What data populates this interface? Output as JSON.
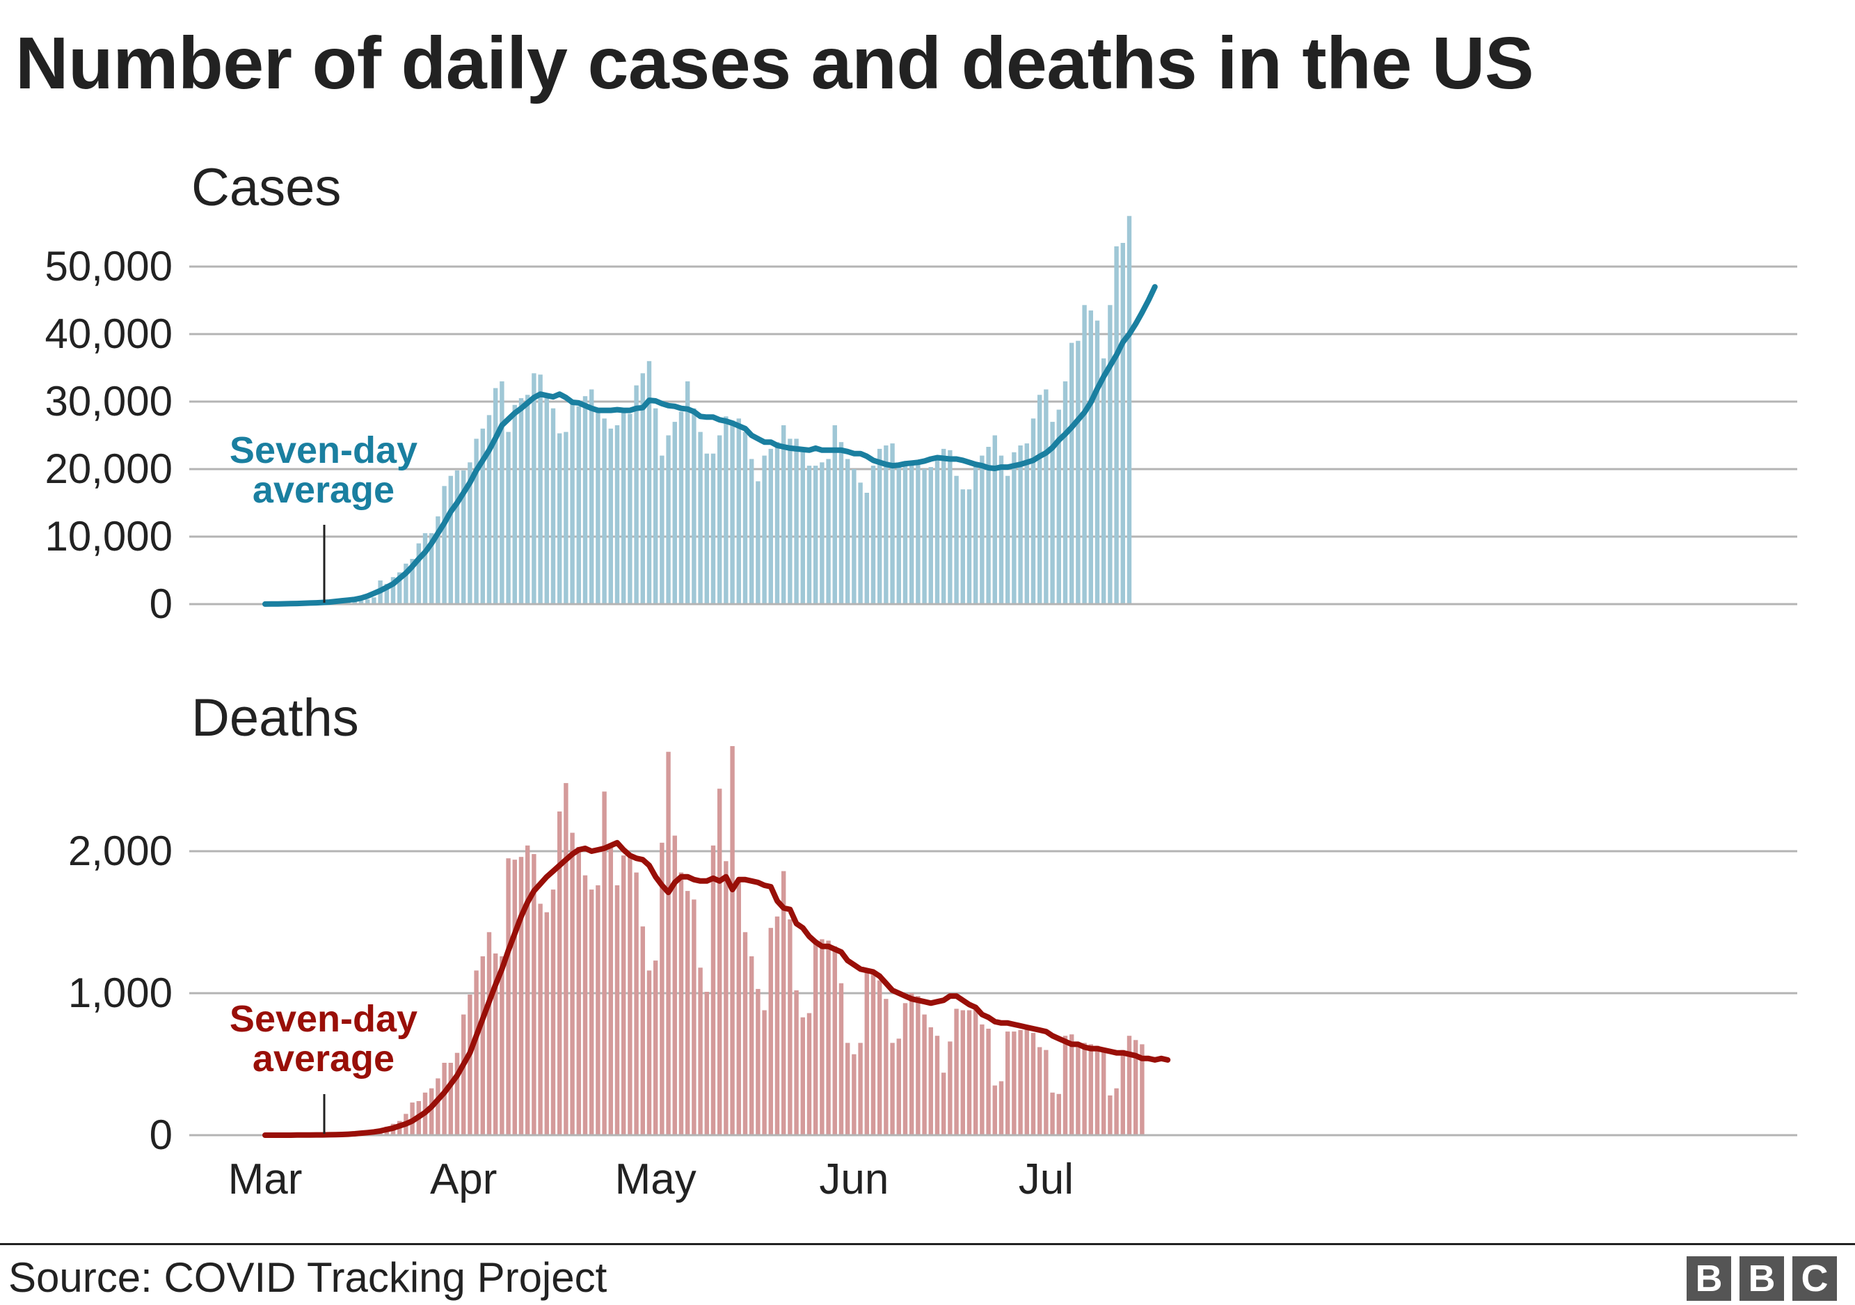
{
  "title": "Number of daily cases and deaths in the US",
  "source": "Source: COVID Tracking Project",
  "logo": [
    "B",
    "B",
    "C"
  ],
  "colors": {
    "cases_bar": "#9fc7d6",
    "cases_line": "#1a7fa0",
    "deaths_bar": "#d49a9a",
    "deaths_line": "#990f08",
    "grid": "#b4b4b4",
    "text": "#222222"
  },
  "chart_data": [
    {
      "type": "bar",
      "title": "Cases",
      "annotation": "Seven-day average",
      "x_start": "2020-03-01",
      "x_end": "2020-07-04",
      "x_ticks": [
        "Mar",
        "Apr",
        "May",
        "Jun",
        "Jul"
      ],
      "y_ticks": [
        "0",
        "10,000",
        "20,000",
        "30,000",
        "40,000",
        "50,000"
      ],
      "ylim": [
        0,
        57000
      ],
      "grid": true,
      "series": [
        {
          "name": "Daily cases",
          "kind": "bar",
          "values": [
            5,
            8,
            10,
            15,
            20,
            25,
            30,
            40,
            60,
            80,
            100,
            150,
            200,
            300,
            400,
            500,
            700,
            1000,
            3500,
            3000,
            4000,
            4700,
            6000,
            6700,
            9000,
            10500,
            10500,
            13000,
            17500,
            19000,
            19800,
            19800,
            21000,
            24500,
            26000,
            28000,
            32000,
            33000,
            25500,
            29500,
            30500,
            31000,
            34200,
            34000,
            30500,
            29000,
            25300,
            25500,
            30000,
            29300,
            30800,
            31800,
            28800,
            27500,
            26000,
            26500,
            29000,
            28200,
            32400,
            34200,
            36000,
            29000,
            22000,
            25000,
            27000,
            28500,
            33000,
            29000,
            25500,
            22300,
            22300,
            25000,
            27800,
            27200,
            27500,
            25500,
            21500,
            18200,
            22000,
            23000,
            24000,
            26500,
            24500,
            24500,
            22500,
            20500,
            20500,
            21000,
            21500,
            26500,
            24000,
            21500,
            20000,
            18000,
            16500,
            20500,
            23000,
            23500,
            23800,
            20500,
            20500,
            21000,
            21200,
            20000,
            20300,
            21500,
            23000,
            22800,
            19000,
            17000,
            17000,
            20500,
            22000,
            23300,
            25000,
            22000,
            19000,
            22500,
            23500,
            23800,
            27500,
            31000,
            31800,
            27000,
            28800,
            33000,
            38700,
            39000,
            44300,
            43500,
            42000,
            36400,
            44300,
            53000,
            53500,
            57500
          ]
        },
        {
          "name": "Seven-day average",
          "kind": "line",
          "values": [
            10,
            20,
            30,
            50,
            70,
            90,
            120,
            160,
            200,
            250,
            300,
            400,
            500,
            600,
            700,
            900,
            1200,
            1600,
            2000,
            2500,
            3000,
            3800,
            4600,
            5600,
            6700,
            7700,
            9000,
            10500,
            12000,
            13700,
            15000,
            16500,
            18000,
            19800,
            21300,
            22800,
            24600,
            26500,
            27400,
            28300,
            29000,
            29800,
            30600,
            31100,
            30900,
            30700,
            31100,
            30600,
            29900,
            29800,
            29400,
            29000,
            28700,
            28700,
            28700,
            28800,
            28700,
            28700,
            29000,
            29100,
            30200,
            30100,
            29700,
            29400,
            29300,
            29000,
            28900,
            28500,
            27800,
            27700,
            27700,
            27300,
            27100,
            26800,
            26400,
            26000,
            25000,
            24500,
            24000,
            24000,
            23500,
            23300,
            23100,
            23000,
            22900,
            22800,
            23100,
            22800,
            22800,
            22800,
            22800,
            22600,
            22300,
            22300,
            21900,
            21300,
            21000,
            20700,
            20500,
            20600,
            20800,
            20900,
            21000,
            21200,
            21500,
            21700,
            21600,
            21500,
            21500,
            21300,
            21000,
            20700,
            20500,
            20200,
            20100,
            20300,
            20300,
            20500,
            20700,
            21000,
            21300,
            21900,
            22400,
            23200,
            24300,
            25200,
            26200,
            27300,
            28400,
            29900,
            31900,
            33700,
            35300,
            36900,
            38800,
            40000,
            41500,
            43200,
            45000,
            47000
          ]
        }
      ]
    },
    {
      "type": "bar",
      "title": "Deaths",
      "annotation": "Seven-day average",
      "x_start": "2020-03-01",
      "x_end": "2020-07-04",
      "x_ticks": [
        "Mar",
        "Apr",
        "May",
        "Jun",
        "Jul"
      ],
      "y_ticks": [
        "0",
        "1,000",
        "2,000"
      ],
      "ylim": [
        0,
        2700
      ],
      "grid": true,
      "series": [
        {
          "name": "Daily deaths",
          "kind": "bar",
          "values": [
            0,
            0,
            1,
            1,
            2,
            2,
            3,
            3,
            4,
            5,
            5,
            6,
            8,
            10,
            15,
            20,
            25,
            30,
            40,
            60,
            80,
            100,
            150,
            230,
            240,
            300,
            330,
            400,
            510,
            510,
            580,
            850,
            990,
            1160,
            1260,
            1430,
            1280,
            1260,
            1950,
            1940,
            1960,
            2040,
            1980,
            1630,
            1570,
            1730,
            2280,
            2480,
            2130,
            2030,
            1830,
            1730,
            1760,
            2420,
            2040,
            1760,
            1970,
            1960,
            1850,
            1470,
            1160,
            1230,
            2060,
            2700,
            2110,
            1850,
            1720,
            1660,
            1180,
            1010,
            2040,
            2440,
            1930,
            2740,
            1800,
            1430,
            1260,
            1030,
            880,
            1460,
            1540,
            1860,
            1520,
            1020,
            830,
            860,
            1370,
            1380,
            1370,
            1330,
            1070,
            650,
            570,
            650,
            1160,
            1160,
            1090,
            960,
            650,
            680,
            930,
            1000,
            980,
            850,
            760,
            700,
            440,
            660,
            890,
            880,
            880,
            890,
            780,
            750,
            350,
            380,
            730,
            730,
            740,
            760,
            720,
            620,
            600,
            300,
            290,
            700,
            710,
            650,
            650,
            640,
            630,
            610,
            280,
            330,
            600,
            700,
            670,
            640
          ]
        },
        {
          "name": "Seven-day average",
          "kind": "line",
          "values": [
            0,
            0,
            0,
            0,
            0,
            1,
            1,
            1,
            2,
            2,
            3,
            4,
            5,
            7,
            10,
            14,
            18,
            23,
            30,
            40,
            50,
            65,
            80,
            100,
            130,
            160,
            200,
            250,
            300,
            360,
            420,
            500,
            580,
            700,
            820,
            940,
            1060,
            1170,
            1300,
            1420,
            1540,
            1640,
            1720,
            1770,
            1820,
            1860,
            1900,
            1940,
            1980,
            2010,
            2020,
            2000,
            2010,
            2020,
            2040,
            2060,
            2010,
            1970,
            1950,
            1940,
            1900,
            1820,
            1760,
            1710,
            1780,
            1820,
            1820,
            1800,
            1790,
            1790,
            1810,
            1790,
            1820,
            1730,
            1800,
            1800,
            1790,
            1780,
            1760,
            1750,
            1650,
            1600,
            1590,
            1490,
            1460,
            1400,
            1360,
            1330,
            1330,
            1310,
            1290,
            1230,
            1200,
            1170,
            1160,
            1150,
            1120,
            1070,
            1020,
            1000,
            980,
            960,
            950,
            940,
            930,
            940,
            950,
            980,
            980,
            950,
            920,
            900,
            850,
            830,
            800,
            790,
            790,
            780,
            770,
            760,
            750,
            740,
            730,
            700,
            680,
            660,
            640,
            640,
            620,
            610,
            610,
            600,
            590,
            580,
            580,
            570,
            560,
            540,
            540,
            530,
            540,
            530
          ]
        }
      ]
    }
  ]
}
